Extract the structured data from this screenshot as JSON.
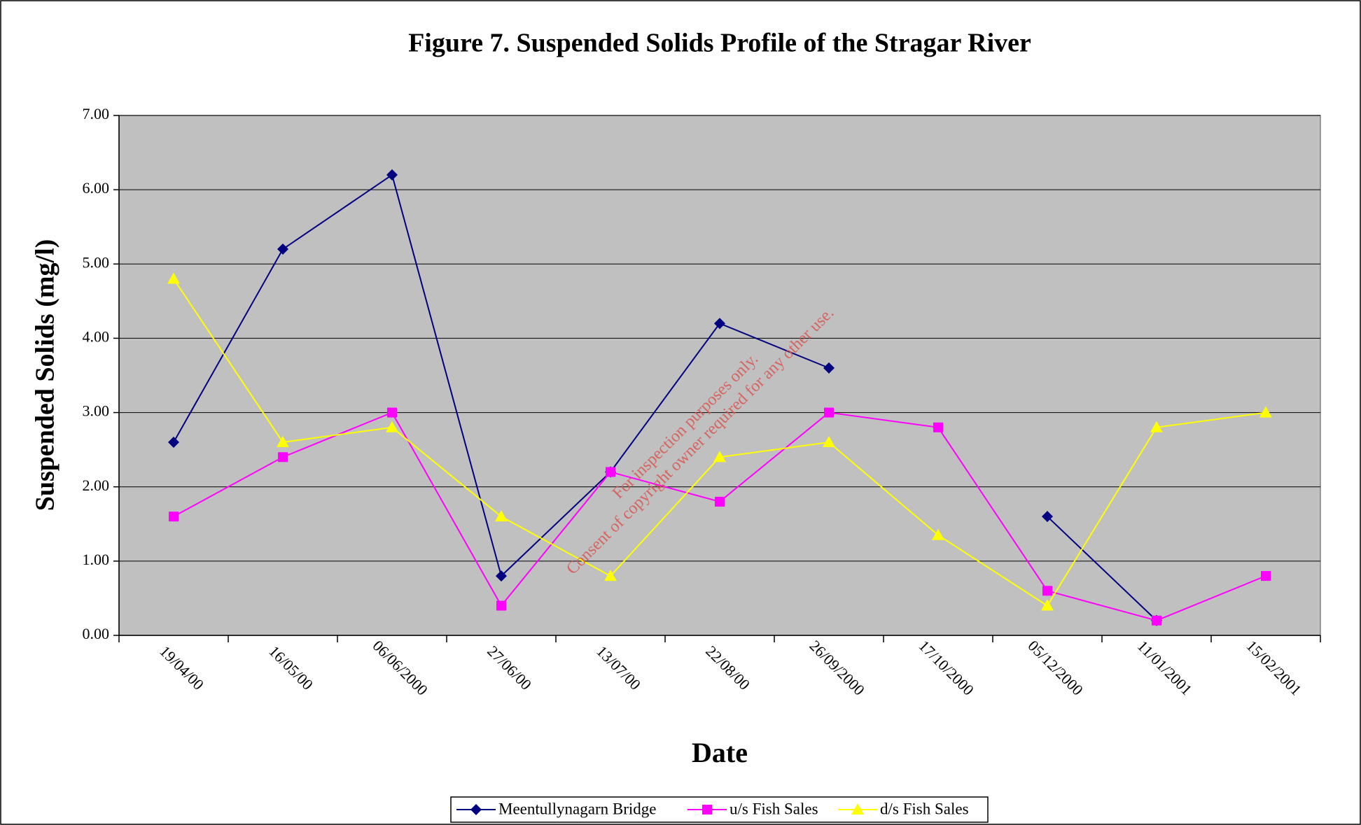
{
  "chart_data": {
    "type": "line",
    "title": "Figure 7. Suspended Solids Profile of the Stragar River",
    "x_label": "Date",
    "y_label": "Suspended Solids (mg/l)",
    "annotations": [
      "For inspection purposes only.",
      "Consent of copyright owner required for any other use."
    ],
    "categories": [
      "19/04/00",
      "16/05/00",
      "06/06/2000",
      "27/06/00",
      "13/07/00",
      "22/08/00",
      "26/09/2000",
      "17/10/2000",
      "05/12/2000",
      "11/01/2001",
      "15/02/2001"
    ],
    "series": [
      {
        "name": "Meentullynagarn Bridge",
        "color": "#000080",
        "marker": "diamond",
        "values": [
          2.6,
          5.2,
          6.2,
          0.8,
          2.2,
          4.2,
          3.6,
          null,
          1.6,
          0.2,
          null
        ]
      },
      {
        "name": "u/s Fish Sales",
        "color": "#ff00ff",
        "marker": "square",
        "values": [
          1.6,
          2.4,
          3.0,
          0.4,
          2.2,
          1.8,
          3.0,
          2.8,
          0.6,
          0.2,
          0.8
        ]
      },
      {
        "name": "d/s Fish Sales",
        "color": "#ffff00",
        "marker": "triangle",
        "values": [
          4.8,
          2.6,
          2.8,
          1.6,
          0.8,
          2.4,
          2.6,
          1.35,
          0.4,
          2.8,
          3.0
        ]
      }
    ],
    "ylim": [
      0,
      7
    ],
    "yticks": [
      {
        "value": 0,
        "label": "0.00"
      },
      {
        "value": 1,
        "label": "1.00"
      },
      {
        "value": 2,
        "label": "2.00"
      },
      {
        "value": 3,
        "label": "3.00"
      },
      {
        "value": 4,
        "label": "4.00"
      },
      {
        "value": 5,
        "label": "5.00"
      },
      {
        "value": 6,
        "label": "6.00"
      },
      {
        "value": 7,
        "label": "7.00"
      }
    ],
    "grid": true,
    "legend": "bottom"
  }
}
